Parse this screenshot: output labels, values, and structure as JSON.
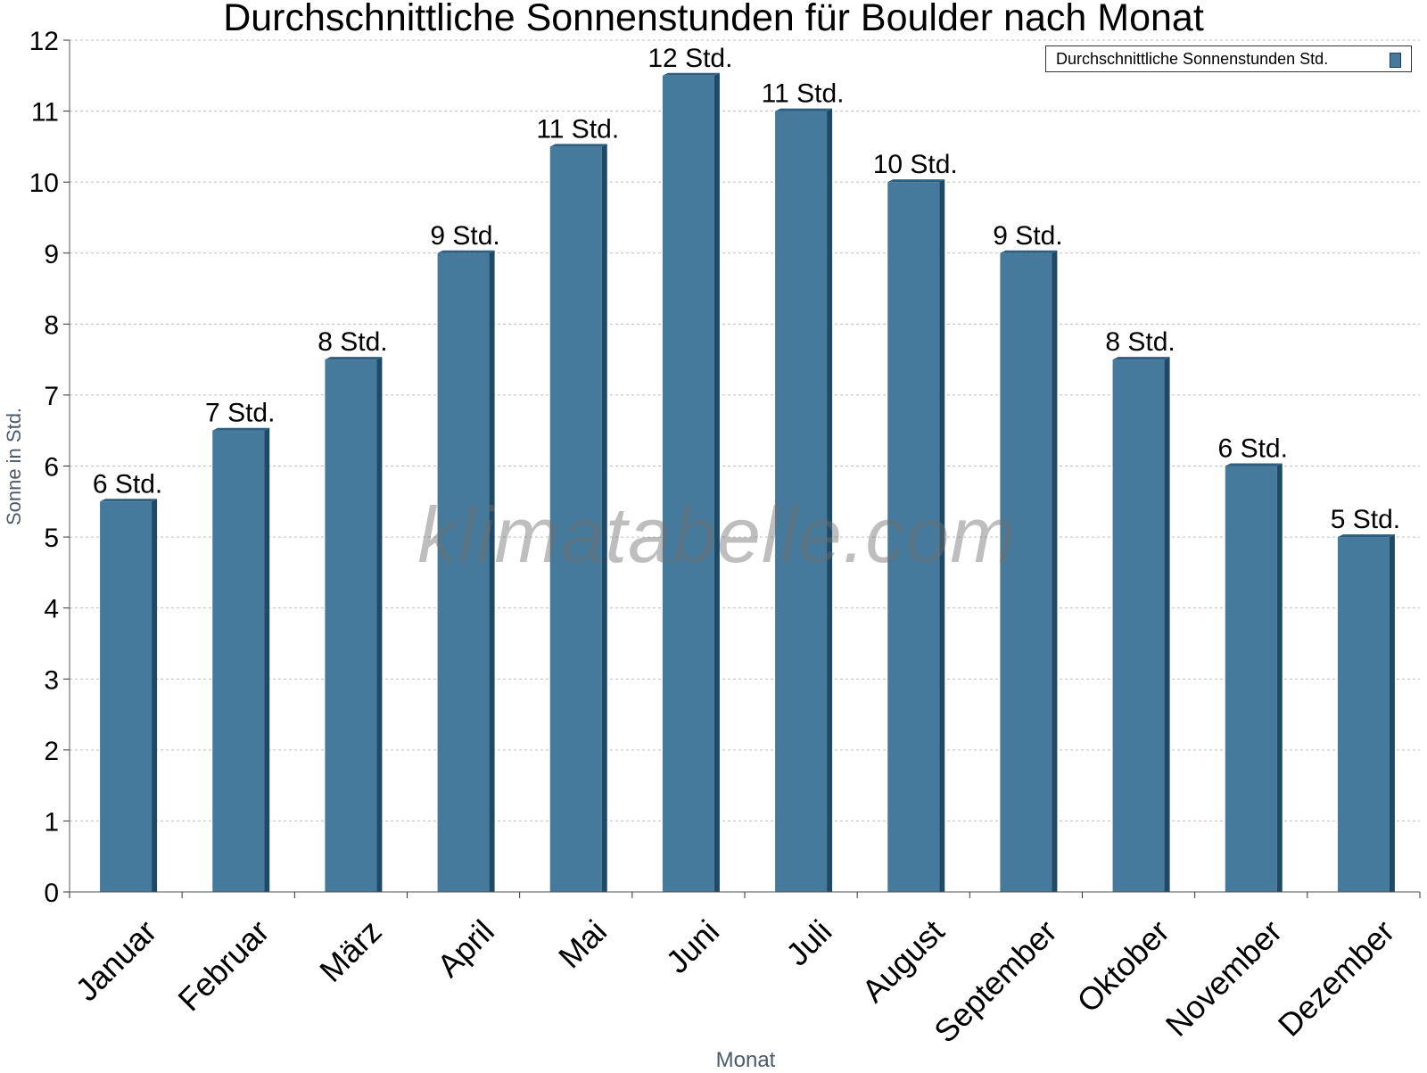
{
  "chart_data": {
    "type": "bar",
    "title": "Durchschnittliche Sonnenstunden für Boulder nach Monat",
    "xlabel": "Monat",
    "ylabel": "Sonne in Std.",
    "ylim": [
      0,
      12
    ],
    "yticks": [
      0,
      1,
      2,
      3,
      4,
      5,
      6,
      7,
      8,
      9,
      10,
      11,
      12
    ],
    "grid": true,
    "legend_position": "top-right",
    "categories": [
      "Januar",
      "Februar",
      "März",
      "April",
      "Mai",
      "Juni",
      "Juli",
      "August",
      "September",
      "Oktober",
      "November",
      "Dezember"
    ],
    "series": [
      {
        "name": "Durchschnittliche Sonnenstunden Std.",
        "values": [
          5.5,
          6.5,
          7.5,
          9,
          10.5,
          11.5,
          11,
          10,
          9,
          7.5,
          6,
          5
        ],
        "data_labels": [
          "6 Std.",
          "7 Std.",
          "8 Std.",
          "9 Std.",
          "11 Std.",
          "12 Std.",
          "11 Std.",
          "10 Std.",
          "9 Std.",
          "8 Std.",
          "6 Std.",
          "5 Std."
        ],
        "color": "#457a9c"
      }
    ],
    "watermark": "klimatabelle.com"
  }
}
